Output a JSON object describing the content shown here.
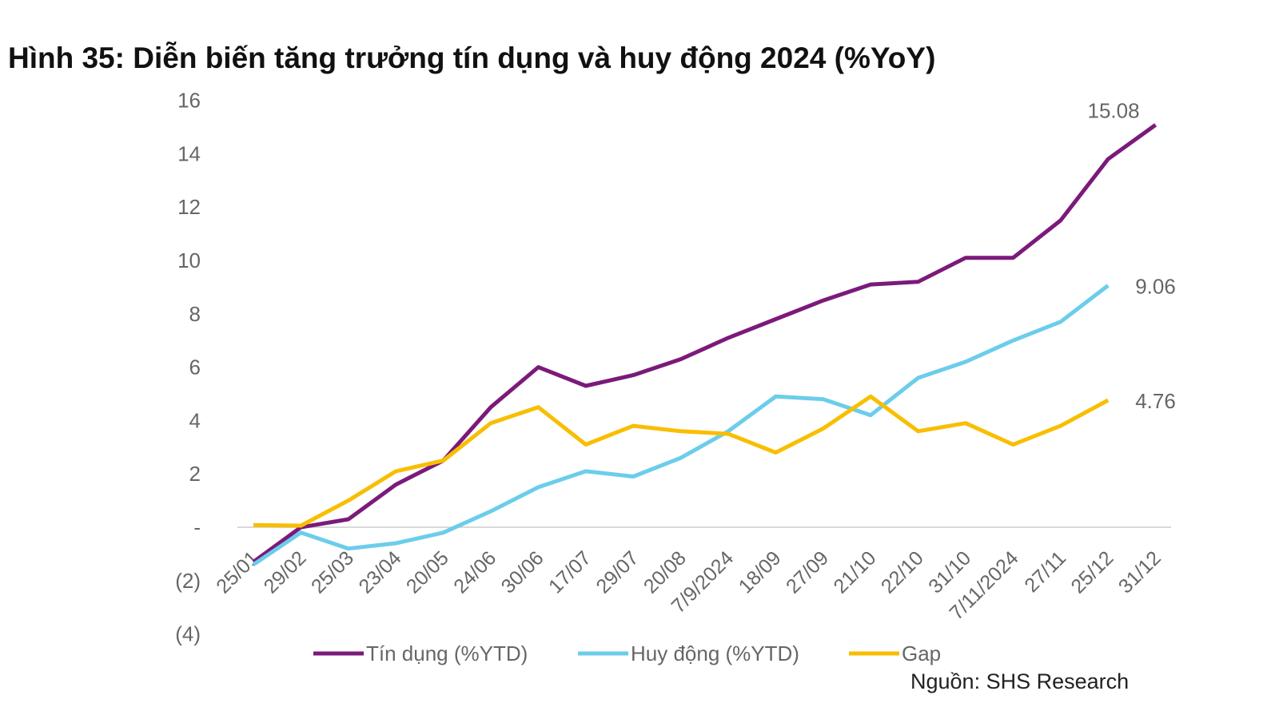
{
  "title": "Hình 35: Diễn biến tăng trưởng tín dụng và huy động 2024 (%YoY)",
  "source": "Nguồn: SHS Research",
  "colors": {
    "credit": "#7B1A7A",
    "mobilization": "#6CCDEB",
    "gap": "#F8BE00",
    "axis_text": "#666666",
    "baseline": "#D9D9D9"
  },
  "chart_data": {
    "type": "line",
    "categories": [
      "25/01",
      "29/02",
      "25/03",
      "23/04",
      "20/05",
      "24/06",
      "30/06",
      "17/07",
      "29/07",
      "20/08",
      "7/9/2024",
      "18/09",
      "27/09",
      "21/10",
      "22/10",
      "31/10",
      "7/11/2024",
      "27/11",
      "25/12",
      "31/12"
    ],
    "series": [
      {
        "name": "Tín dụng (%YTD)",
        "key": "credit",
        "values": [
          -1.3,
          0.0,
          0.3,
          1.6,
          2.5,
          4.5,
          6.0,
          5.3,
          5.7,
          6.3,
          7.1,
          7.8,
          8.5,
          9.1,
          9.2,
          10.1,
          10.1,
          11.5,
          13.8,
          15.08
        ]
      },
      {
        "name": "Huy động (%YTD)",
        "key": "mobilization",
        "values": [
          -1.4,
          -0.2,
          -0.8,
          -0.6,
          -0.2,
          0.6,
          1.5,
          2.1,
          1.9,
          2.6,
          3.6,
          4.9,
          4.8,
          4.2,
          5.6,
          6.2,
          7.0,
          7.7,
          9.06,
          null
        ]
      },
      {
        "name": "Gap",
        "key": "gap",
        "values": [
          0.08,
          0.06,
          1.0,
          2.1,
          2.5,
          3.9,
          4.5,
          3.1,
          3.8,
          3.6,
          3.5,
          2.8,
          3.7,
          4.9,
          3.6,
          3.9,
          3.1,
          3.8,
          4.76,
          null
        ]
      }
    ],
    "data_labels": [
      {
        "series": "credit",
        "index": 19,
        "text": "15.08"
      },
      {
        "series": "mobilization",
        "index": 18,
        "text": "9.06"
      },
      {
        "series": "gap",
        "index": 18,
        "text": "4.76"
      }
    ],
    "y_ticks": [
      16,
      14,
      12,
      10,
      8,
      6,
      4,
      2,
      0,
      -2,
      -4
    ],
    "y_tick_labels": [
      "16",
      "14",
      "12",
      "10",
      "8",
      "6",
      "4",
      "2",
      "-",
      "(2)",
      "(4)"
    ],
    "ylim": [
      -4,
      16
    ],
    "xlabel": "",
    "ylabel": "",
    "grid": false,
    "legend_position": "bottom"
  }
}
